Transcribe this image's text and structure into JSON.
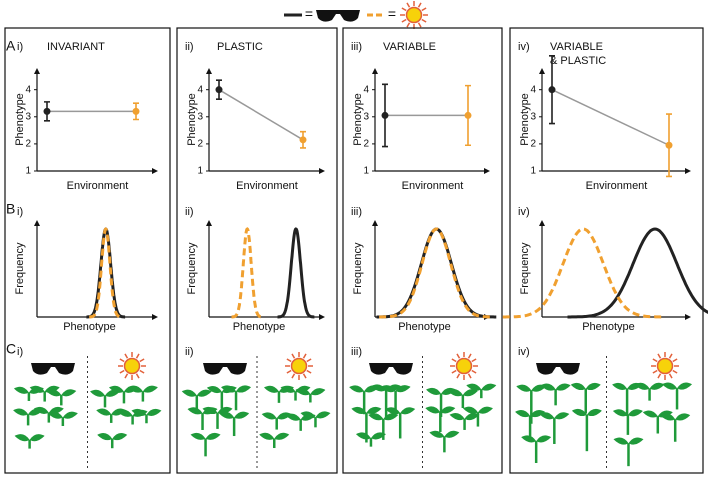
{
  "legend_sign": "=",
  "row_labels": [
    "A",
    "B",
    "C"
  ],
  "axis_labels": {
    "phenotype": "Phenotype",
    "environment": "Environment",
    "frequency": "Frequency"
  },
  "colors": {
    "dark": "#222222",
    "light": "#f0a030"
  },
  "panels": [
    {
      "numeral": "i)",
      "title_lines": [
        "INVARIANT"
      ],
      "chart": {
        "type": "dot-range",
        "ylim": [
          1,
          4.8
        ],
        "yticks": [
          1,
          2,
          3,
          4
        ],
        "series": [
          {
            "color": "#222222",
            "value": 3.2,
            "error": 0.35
          },
          {
            "color": "#f0a030",
            "value": 3.2,
            "error": 0.3
          }
        ]
      }
    },
    {
      "numeral": "ii)",
      "title_lines": [
        "PLASTIC"
      ],
      "chart": {
        "type": "dot-range",
        "ylim": [
          1,
          4.8
        ],
        "yticks": [
          1,
          2,
          3,
          4
        ],
        "series": [
          {
            "color": "#222222",
            "value": 4.0,
            "error": 0.35
          },
          {
            "color": "#f0a030",
            "value": 2.15,
            "error": 0.3
          }
        ]
      }
    },
    {
      "numeral": "iii)",
      "title_lines": [
        "VARIABLE"
      ],
      "chart": {
        "type": "dot-range",
        "ylim": [
          1,
          4.8
        ],
        "yticks": [
          1,
          2,
          3,
          4
        ],
        "series": [
          {
            "color": "#222222",
            "value": 3.05,
            "error": 1.15
          },
          {
            "color": "#f0a030",
            "value": 3.05,
            "error": 1.1
          }
        ]
      }
    },
    {
      "numeral": "iv)",
      "title_lines": [
        "VARIABLE",
        "& PLASTIC"
      ],
      "chart": {
        "type": "dot-range",
        "ylim": [
          1,
          4.8
        ],
        "yticks": [
          1,
          2,
          3,
          4
        ],
        "series": [
          {
            "color": "#222222",
            "value": 4.0,
            "error": 1.25
          },
          {
            "color": "#f0a030",
            "value": 1.95,
            "error": 1.15
          }
        ]
      }
    }
  ]
}
